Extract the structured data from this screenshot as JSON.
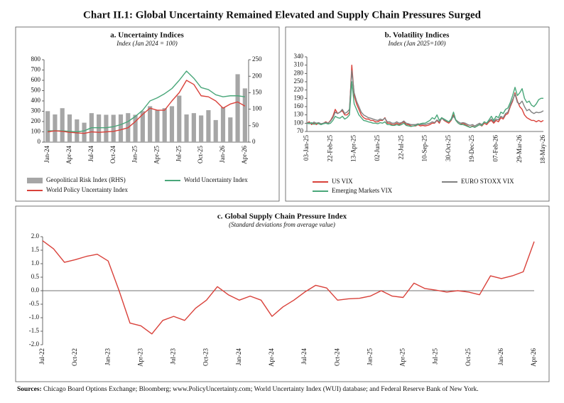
{
  "title": "Chart II.1: Global Uncertainty Remained Elevated and Supply Chain Pressures Surged",
  "source_label": "Sources:",
  "source": "Chicago Board Options Exchange; Bloomberg; www.PolicyUncertainty.com; World Uncertainty Index (WUI) database; and Federal Reserve Bank of New York.",
  "chart_data": [
    {
      "type": "combo",
      "title": "a. Uncertainty Indices",
      "subtitle": "Index (Jan 2024 = 100)",
      "categories": [
        "Jan-24",
        null,
        null,
        "Apr-24",
        null,
        null,
        "Jul-24",
        null,
        null,
        "Oct-24",
        null,
        null,
        "Jan-25",
        null,
        null,
        "Apr-25",
        null,
        null,
        "Jul-25",
        null,
        null,
        "Oct-25",
        null,
        null,
        "Jan-26",
        null,
        null,
        "Apr-26"
      ],
      "ylim": [
        0,
        800
      ],
      "yticks": [
        0,
        100,
        200,
        300,
        400,
        500,
        600,
        700,
        800
      ],
      "y2lim": [
        0,
        250
      ],
      "y2ticks": [
        0,
        50,
        100,
        150,
        200,
        250
      ],
      "series": [
        {
          "name": "Geopolitical Risk Index (RHS)",
          "type": "bar",
          "axis": "y2",
          "color": "#a6a6a6",
          "values": [
            94,
            84,
            103,
            84,
            69,
            59,
            88,
            84,
            83,
            83,
            84,
            88,
            83,
            94,
            109,
            97,
            103,
            109,
            141,
            84,
            88,
            81,
            97,
            67,
            106,
            75,
            206,
            163
          ]
        },
        {
          "name": "World Uncertainty Index",
          "type": "line",
          "color": "#4aa77a",
          "values": [
            110,
            110,
            110,
            105,
            100,
            110,
            140,
            140,
            140,
            150,
            170,
            200,
            250,
            310,
            400,
            430,
            470,
            520,
            600,
            690,
            620,
            530,
            510,
            460,
            440,
            450,
            450,
            440
          ]
        },
        {
          "name": "World Policy Uncertainty Index",
          "type": "line",
          "color": "#d9413a",
          "values": [
            100,
            110,
            105,
            95,
            90,
            85,
            100,
            95,
            100,
            105,
            120,
            140,
            200,
            270,
            330,
            310,
            310,
            400,
            480,
            600,
            560,
            450,
            440,
            400,
            330,
            370,
            390,
            350
          ]
        }
      ]
    },
    {
      "type": "line",
      "title": "b. Volatility Indices",
      "subtitle": "Index (Jan 2025=100)",
      "categories": [
        "03-Jan-25",
        null,
        null,
        null,
        null,
        null,
        null,
        null,
        null,
        null,
        "22-Feb-25",
        null,
        null,
        null,
        null,
        null,
        null,
        null,
        null,
        null,
        "13-Apr-25",
        null,
        null,
        null,
        null,
        null,
        null,
        null,
        null,
        null,
        "02-Jun-25",
        null,
        null,
        null,
        null,
        null,
        null,
        null,
        null,
        null,
        "22-Jul-25",
        null,
        null,
        null,
        null,
        null,
        null,
        null,
        null,
        null,
        "10-Sep-25",
        null,
        null,
        null,
        null,
        null,
        null,
        null,
        null,
        null,
        "30-Oct-25",
        null,
        null,
        null,
        null,
        null,
        null,
        null,
        null,
        null,
        "19-Dec-25",
        null,
        null,
        null,
        null,
        null,
        null,
        null,
        null,
        null,
        "07-Feb-26",
        null,
        null,
        null,
        null,
        null,
        null,
        null,
        null,
        null,
        "29-Mar-26",
        null,
        null,
        null,
        null,
        null,
        null,
        null,
        null,
        null,
        "18-May-26"
      ],
      "ylim": [
        70,
        340
      ],
      "yticks": [
        70,
        100,
        130,
        160,
        190,
        220,
        250,
        280,
        310,
        340
      ],
      "series": [
        {
          "name": "US VIX",
          "color": "#d9413a",
          "values": [
            100,
            105,
            95,
            100,
            95,
            100,
            95,
            100,
            105,
            100,
            110,
            125,
            150,
            135,
            140,
            145,
            130,
            130,
            140,
            310,
            200,
            170,
            150,
            130,
            120,
            115,
            115,
            110,
            110,
            105,
            105,
            110,
            110,
            120,
            100,
            100,
            95,
            95,
            100,
            95,
            100,
            105,
            95,
            95,
            90,
            90,
            90,
            95,
            90,
            92,
            90,
            92,
            95,
            100,
            100,
            110,
            100,
            120,
            110,
            105,
            100,
            110,
            130,
            110,
            100,
            95,
            100,
            95,
            90,
            85,
            90,
            85,
            90,
            95,
            90,
            100,
            95,
            105,
            110,
            100,
            110,
            105,
            120,
            115,
            130,
            135,
            160,
            180,
            210,
            180,
            160,
            150,
            130,
            120,
            115,
            110,
            110,
            105,
            110,
            105,
            110
          ]
        },
        {
          "name": "EURO STOXX VIX",
          "color": "#808080",
          "values": [
            100,
            102,
            98,
            104,
            100,
            102,
            98,
            100,
            103,
            100,
            108,
            120,
            140,
            135,
            140,
            150,
            135,
            140,
            150,
            290,
            210,
            180,
            160,
            140,
            130,
            125,
            120,
            118,
            115,
            112,
            110,
            115,
            112,
            118,
            105,
            105,
            100,
            100,
            105,
            100,
            102,
            108,
            100,
            98,
            95,
            95,
            95,
            98,
            95,
            96,
            95,
            98,
            100,
            105,
            102,
            112,
            105,
            118,
            112,
            108,
            105,
            112,
            125,
            112,
            105,
            100,
            102,
            100,
            95,
            92,
            95,
            90,
            95,
            100,
            95,
            105,
            100,
            108,
            115,
            105,
            115,
            112,
            125,
            120,
            135,
            140,
            165,
            185,
            205,
            175,
            170,
            180,
            160,
            145,
            150,
            140,
            135,
            140,
            138,
            140,
            145
          ]
        },
        {
          "name": "Emerging Markets VIX",
          "color": "#4aa77a",
          "values": [
            100,
            98,
            102,
            96,
            100,
            98,
            95,
            98,
            100,
            97,
            100,
            110,
            125,
            120,
            118,
            125,
            115,
            120,
            130,
            250,
            170,
            150,
            130,
            120,
            110,
            108,
            105,
            103,
            100,
            100,
            98,
            102,
            100,
            105,
            95,
            95,
            92,
            92,
            95,
            92,
            95,
            100,
            92,
            90,
            88,
            90,
            92,
            95,
            98,
            100,
            100,
            105,
            110,
            120,
            115,
            130,
            110,
            120,
            115,
            110,
            105,
            115,
            140,
            110,
            100,
            95,
            95,
            92,
            88,
            85,
            88,
            85,
            90,
            95,
            92,
            105,
            100,
            112,
            125,
            110,
            125,
            120,
            140,
            135,
            150,
            155,
            175,
            200,
            230,
            200,
            210,
            225,
            190,
            175,
            180,
            165,
            160,
            170,
            185,
            190,
            190
          ]
        }
      ]
    },
    {
      "type": "line",
      "title": "c. Global Supply Chain Pressure Index",
      "subtitle": "(Standard deviations from average value)",
      "categories": [
        "Jul-22",
        null,
        null,
        "Oct-22",
        null,
        null,
        "Jan-23",
        null,
        null,
        "Apr-23",
        null,
        null,
        "Jul-23",
        null,
        null,
        "Oct-23",
        null,
        null,
        "Jan-24",
        null,
        null,
        "Apr-24",
        null,
        null,
        "Jul-24",
        null,
        null,
        "Oct-24",
        null,
        null,
        "Jan-25",
        null,
        null,
        "Apr-25",
        null,
        null,
        "Jul-25",
        null,
        null,
        "Oct-25",
        null,
        null,
        "Jan-26",
        null,
        null,
        "Apr-26"
      ],
      "ylim": [
        -2,
        2
      ],
      "yticks": [
        {
          "value": -2,
          "label": "-2.0"
        },
        -1.5,
        {
          "value": -1,
          "label": "-1.0"
        },
        -0.5,
        {
          "value": 0,
          "label": "0.0"
        },
        0.5,
        {
          "value": 1,
          "label": "1.0"
        },
        1.5,
        {
          "value": 2,
          "label": "2.0"
        }
      ],
      "series": [
        {
          "color": "#d9413a",
          "values": [
            1.85,
            1.55,
            1.05,
            1.15,
            1.27,
            1.35,
            1.1,
            0.0,
            -1.2,
            -1.3,
            -1.6,
            -1.1,
            -0.95,
            -1.1,
            -0.65,
            -0.35,
            0.15,
            -0.15,
            -0.35,
            -0.2,
            -0.35,
            -0.95,
            -0.6,
            -0.35,
            -0.05,
            0.2,
            0.1,
            -0.35,
            -0.3,
            -0.28,
            -0.2,
            0.0,
            -0.2,
            -0.25,
            0.28,
            0.08,
            0.02,
            -0.05,
            0.0,
            -0.05,
            -0.15,
            0.55,
            0.45,
            0.55,
            0.7,
            1.82
          ]
        }
      ]
    }
  ]
}
